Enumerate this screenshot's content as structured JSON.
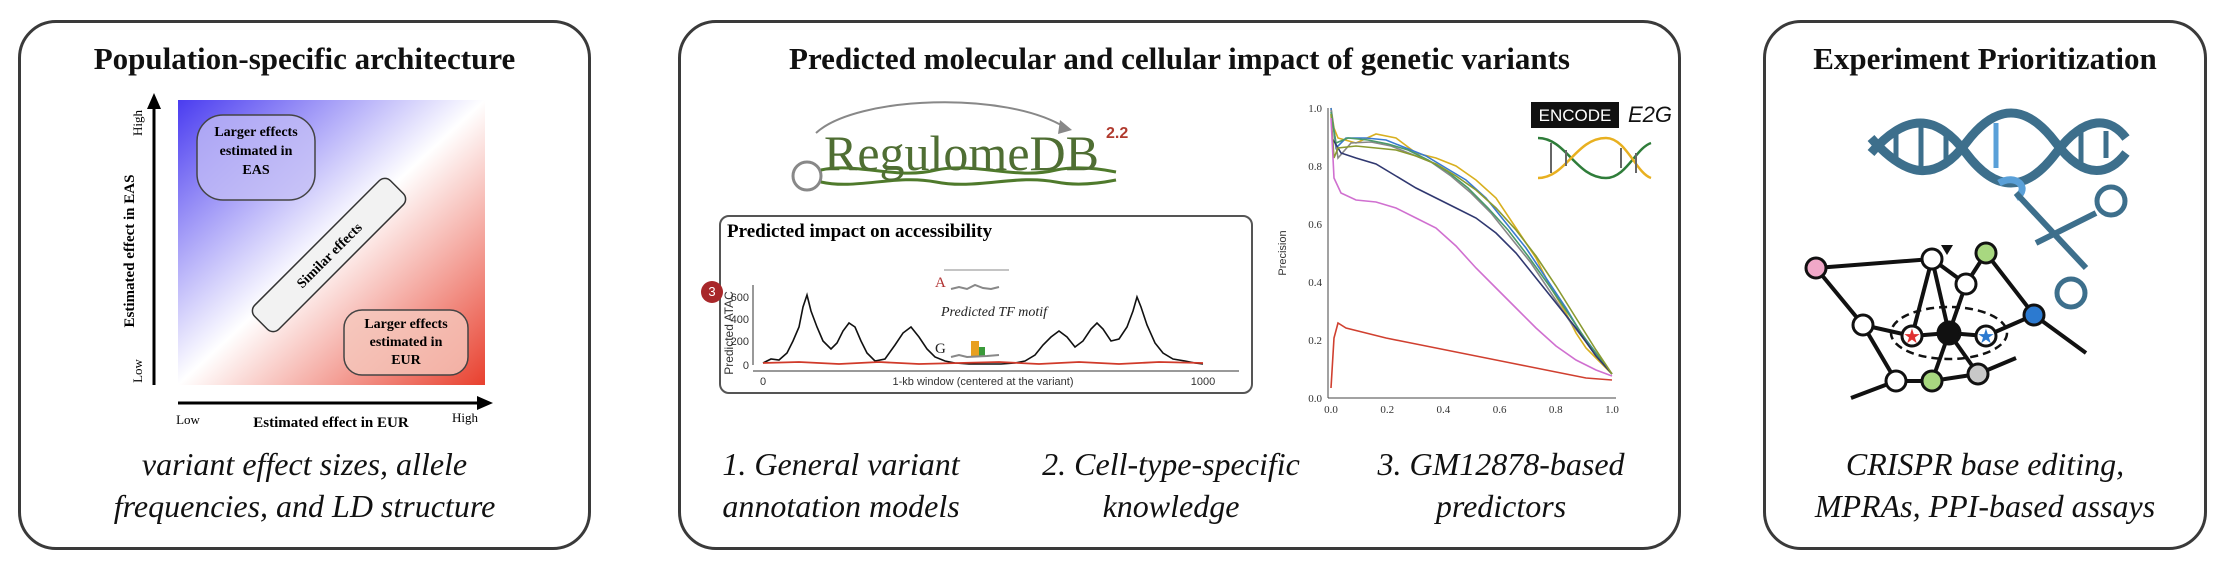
{
  "panel1": {
    "title": "Population-specific architecture",
    "ylabel": "Estimated effect in EAS",
    "xlabel": "Estimated effect in EUR",
    "y_high": "High",
    "y_low": "Low",
    "x_low": "Low",
    "x_high": "High",
    "box_eas": [
      "Larger effects",
      "estimated in",
      "EAS"
    ],
    "box_similar": "Similar effects",
    "box_eur": [
      "Larger effects",
      "estimated in",
      "EUR"
    ],
    "caption": [
      "variant effect sizes, allele",
      "frequencies, and LD structure"
    ],
    "colors": {
      "blue": "#4a3cf0",
      "red": "#e8402e"
    }
  },
  "panel2": {
    "title": "Predicted molecular and cellular impact of genetic variants",
    "regulome_logo": "RegulomeDB",
    "regulome_version": "2.2",
    "encode_logo": "ENCODE",
    "e2g_logo": "E2G",
    "accessibility_title": "Predicted impact on accessibility",
    "badge": "3",
    "atac_ylabel": "Predicted ATAC",
    "atac_xlabel": "1-kb window (centered at the variant)",
    "atac_yticks": [
      "0",
      "200",
      "400",
      "600"
    ],
    "atac_xticks": [
      "0",
      "1000"
    ],
    "allele_a": "A",
    "allele_g": "G",
    "motif_label": "Predicted TF motif",
    "pr_ylabel": "Precision",
    "pr_yticks": [
      "0.0",
      "0.2",
      "0.4",
      "0.6",
      "0.8",
      "1.0"
    ],
    "pr_xticks": [
      "0.0",
      "0.2",
      "0.4",
      "0.6",
      "0.8",
      "1.0"
    ],
    "caption1": [
      "1. General variant",
      "annotation models"
    ],
    "caption2": [
      "2. Cell-type-specific",
      "knowledge"
    ],
    "caption3": [
      "3. GM12878-based",
      "predictors"
    ]
  },
  "panel3": {
    "title": "Experiment Prioritization",
    "caption": [
      "CRISPR base editing,",
      "MPRAs, PPI-based assays"
    ],
    "colors": {
      "dna": "#3d6f8c",
      "dna_light": "#5aa0d8",
      "pink": "#f0a8c8",
      "green": "#a8d880",
      "blue": "#2c7ad0",
      "red": "#e03030",
      "gray": "#c8c8c8"
    }
  }
}
